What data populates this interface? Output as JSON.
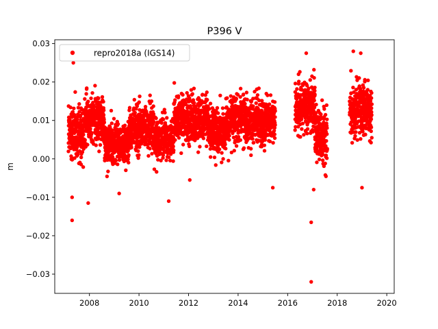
{
  "chart_data": {
    "type": "scatter",
    "title": "P396 V",
    "xlabel": "",
    "ylabel": "m",
    "xlim": [
      2006.6,
      2020.3
    ],
    "ylim": [
      -0.035,
      0.031
    ],
    "xticks": [
      2008,
      2010,
      2012,
      2014,
      2016,
      2018,
      2020
    ],
    "xtick_labels": [
      "2008",
      "2010",
      "2012",
      "2014",
      "2016",
      "2018",
      "2020"
    ],
    "yticks": [
      -0.03,
      -0.02,
      -0.01,
      0.0,
      0.01,
      0.02,
      0.03
    ],
    "ytick_labels": [
      "−0.03",
      "−0.02",
      "−0.01",
      "0.00",
      "0.01",
      "0.02",
      "0.03"
    ],
    "grid": false,
    "legend_position": "upper-left",
    "series": [
      {
        "name": "repro2018a (IGS14)",
        "color": "#ff0000",
        "marker": "circle",
        "segments": [
          {
            "x_range": [
              2007.15,
              2007.75
            ],
            "center": 0.006,
            "spread": 0.006
          },
          {
            "x_range": [
              2007.75,
              2008.6
            ],
            "center": 0.01,
            "spread": 0.0055
          },
          {
            "x_range": [
              2008.6,
              2009.6
            ],
            "center": 0.004,
            "spread": 0.0045
          },
          {
            "x_range": [
              2009.6,
              2010.6
            ],
            "center": 0.008,
            "spread": 0.0055
          },
          {
            "x_range": [
              2010.6,
              2011.4
            ],
            "center": 0.005,
            "spread": 0.005
          },
          {
            "x_range": [
              2011.4,
              2012.8
            ],
            "center": 0.01,
            "spread": 0.0055
          },
          {
            "x_range": [
              2012.8,
              2013.5
            ],
            "center": 0.007,
            "spread": 0.005
          },
          {
            "x_range": [
              2013.5,
              2015.5
            ],
            "center": 0.01,
            "spread": 0.0055
          },
          {
            "x_range": [
              2016.3,
              2017.1
            ],
            "center": 0.014,
            "spread": 0.006
          },
          {
            "x_range": [
              2017.1,
              2017.6
            ],
            "center": 0.006,
            "spread": 0.0065
          },
          {
            "x_range": [
              2018.5,
              2019.4
            ],
            "center": 0.013,
            "spread": 0.0065
          }
        ],
        "outliers": [
          {
            "x": 2007.3,
            "y": -0.016
          },
          {
            "x": 2007.3,
            "y": -0.01
          },
          {
            "x": 2007.95,
            "y": -0.0115
          },
          {
            "x": 2009.2,
            "y": -0.009
          },
          {
            "x": 2011.2,
            "y": -0.011
          },
          {
            "x": 2012.05,
            "y": -0.0055
          },
          {
            "x": 2015.4,
            "y": -0.0075
          },
          {
            "x": 2016.95,
            "y": -0.0165
          },
          {
            "x": 2016.95,
            "y": -0.032
          },
          {
            "x": 2017.05,
            "y": -0.008
          },
          {
            "x": 2019.0,
            "y": -0.0075
          },
          {
            "x": 2016.75,
            "y": 0.0275
          },
          {
            "x": 2018.65,
            "y": 0.028
          },
          {
            "x": 2018.95,
            "y": 0.0275
          },
          {
            "x": 2007.35,
            "y": 0.025
          }
        ]
      }
    ]
  }
}
